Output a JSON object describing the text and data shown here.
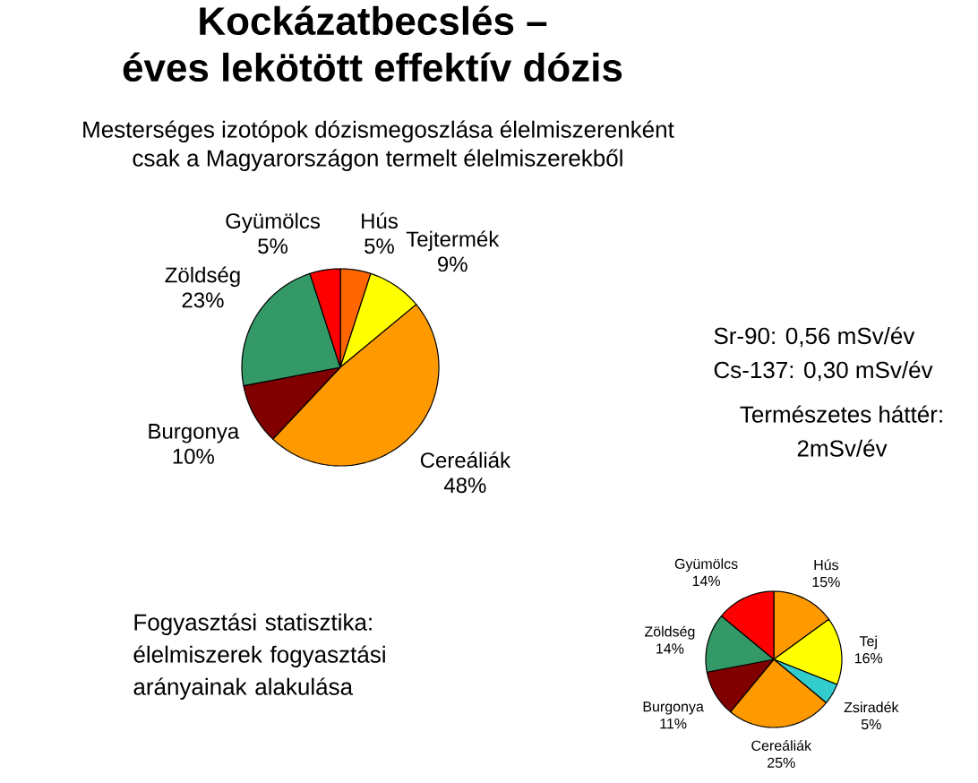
{
  "chart_data": [
    {
      "type": "pie",
      "title": "Kockázatbecslés – éves lekötött effektív dózis",
      "subtitle": "Mesterséges izotópok dózismegoszlása élelmiszerenként csak a Magyarországon termelt élelmiszerekből",
      "categories": [
        "Hús",
        "Tejtermék",
        "Cereáliák",
        "Burgonya",
        "Zöldség",
        "Gyümölcs"
      ],
      "values": [
        5,
        9,
        48,
        10,
        23,
        5
      ],
      "value_labels": [
        "5%",
        "9%",
        "48%",
        "10%",
        "23%",
        "5%"
      ],
      "colors": [
        "#ff6600",
        "#ffff00",
        "#ff9900",
        "#800000",
        "#339966",
        "#ff0000"
      ],
      "annotations": [
        "Sr-90: 0,56 mSv/év",
        "Cs-137: 0,30 mSv/év",
        "Természetes háttér: 2mSv/év"
      ]
    },
    {
      "type": "pie",
      "title": "Fogyasztási statisztika: élelmiszerek fogyasztási arányainak alakulása",
      "categories": [
        "Hús",
        "Tej",
        "Zsiradék",
        "Cereáliák",
        "Burgonya",
        "Zöldség",
        "Gyümölcs"
      ],
      "values": [
        15,
        16,
        5,
        25,
        11,
        14,
        14
      ],
      "value_labels": [
        "15%",
        "16%",
        "5%",
        "25%",
        "11%",
        "14%",
        "14%"
      ],
      "colors": [
        "#ff9900",
        "#ffff00",
        "#33cccc",
        "#ff9900",
        "#800000",
        "#339966",
        "#ff0000"
      ]
    }
  ]
}
